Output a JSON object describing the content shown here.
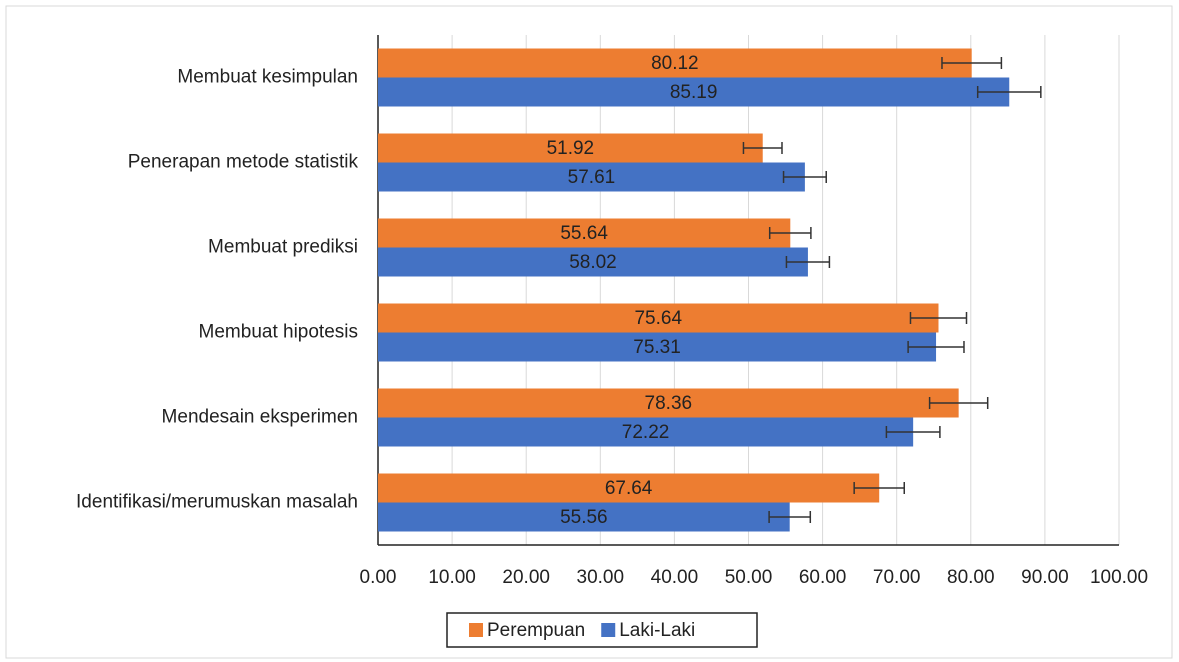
{
  "chart_data": {
    "type": "bar",
    "orientation": "horizontal",
    "categories": [
      "Membuat kesimpulan",
      "Penerapan metode statistik",
      "Membuat prediksi",
      "Membuat hipotesis",
      "Mendesain eksperimen",
      "Identifikasi/merumuskan masalah"
    ],
    "series": [
      {
        "name": "Perempuan",
        "color": "#ed7d31",
        "values": [
          80.12,
          51.92,
          55.64,
          75.64,
          78.36,
          67.64
        ],
        "errors": [
          4.01,
          2.6,
          2.78,
          3.78,
          3.92,
          3.38
        ]
      },
      {
        "name": "Laki-Laki",
        "color": "#4472c4",
        "values": [
          85.19,
          57.61,
          58.02,
          75.31,
          72.22,
          55.56
        ],
        "errors": [
          4.26,
          2.88,
          2.9,
          3.77,
          3.61,
          2.78
        ]
      }
    ],
    "xlim": [
      0,
      100
    ],
    "xticks": [
      {
        "value": 0,
        "label": "0.00"
      },
      {
        "value": 10,
        "label": "10.00"
      },
      {
        "value": 20,
        "label": "20.00"
      },
      {
        "value": 30,
        "label": "30.00"
      },
      {
        "value": 40,
        "label": "40.00"
      },
      {
        "value": 50,
        "label": "50.00"
      },
      {
        "value": 60,
        "label": "60.00"
      },
      {
        "value": 70,
        "label": "70.00"
      },
      {
        "value": 80,
        "label": "80.00"
      },
      {
        "value": 90,
        "label": "90.00"
      },
      {
        "value": 100,
        "label": "100.00"
      }
    ],
    "grid": true,
    "legend": "bottom"
  }
}
